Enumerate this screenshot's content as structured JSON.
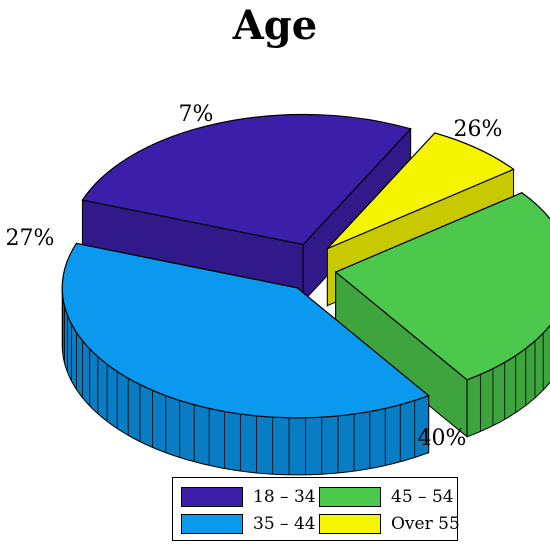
{
  "chart_data": {
    "type": "pie",
    "title": "Age",
    "style": "3d-exploded",
    "categories": [
      "18 – 34",
      "Over 55",
      "45 – 54",
      "35 – 44"
    ],
    "values": [
      27,
      7,
      26,
      40
    ],
    "labels": [
      "27%",
      "7%",
      "26%",
      "40%"
    ],
    "colors": [
      "#3c1fa8",
      "#f5f500",
      "#4cc94c",
      "#0a99ee"
    ],
    "legend": {
      "placement": "bottom",
      "entries": [
        {
          "label": "18 – 34",
          "color": "#3c1fa8"
        },
        {
          "label": "45 – 54",
          "color": "#4cc94c"
        },
        {
          "label": "35 – 44",
          "color": "#0a99ee"
        },
        {
          "label": "Over 55",
          "color": "#f5f500"
        }
      ]
    }
  }
}
